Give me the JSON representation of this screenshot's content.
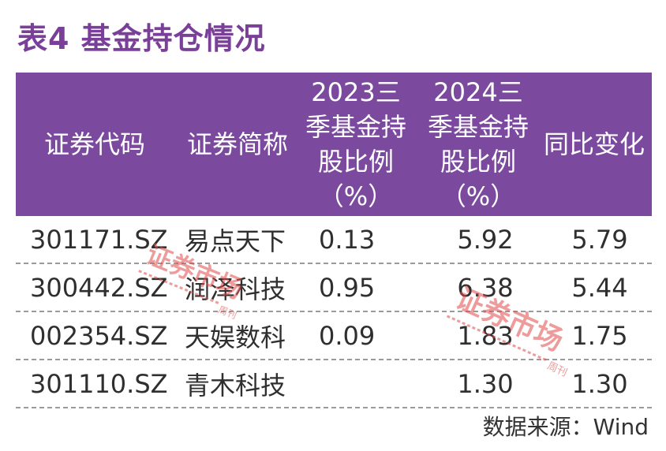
{
  "title": "表4  基金持仓情况",
  "colors": {
    "title": "#7a3f98",
    "header_bg": "#7b4a9f",
    "stamp": "#e04a4a"
  },
  "table": {
    "headers": [
      "证券代码",
      "证券简称",
      "2023三\n季基金持\n股比例\n（%）",
      "2024三\n季基金持\n股比例\n（%）",
      "同比变化"
    ],
    "rows": [
      [
        "301171.SZ",
        "易点天下",
        "0.13",
        "5.92",
        "5.79"
      ],
      [
        "300442.SZ",
        "润泽科技",
        "0.95",
        "6.38",
        "5.44"
      ],
      [
        "002354.SZ",
        "天娱数科",
        "0.09",
        "1.83",
        "1.75"
      ],
      [
        "301110.SZ",
        "青木科技",
        "",
        "1.30",
        "1.30"
      ]
    ]
  },
  "source": "数据来源：Wind",
  "watermarks": [
    {
      "text": "证券市场",
      "sub": "周刊"
    },
    {
      "text": "证券市场",
      "sub": "周刊"
    }
  ]
}
